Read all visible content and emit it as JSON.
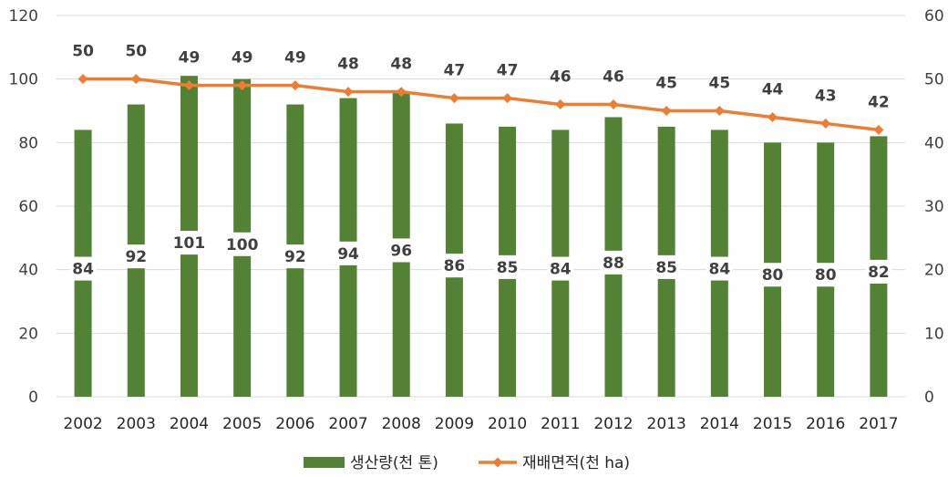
{
  "chart_data": {
    "type": "bar",
    "categories": [
      "2002",
      "2003",
      "2004",
      "2005",
      "2006",
      "2007",
      "2008",
      "2009",
      "2010",
      "2011",
      "2012",
      "2013",
      "2014",
      "2015",
      "2016",
      "2017"
    ],
    "series": [
      {
        "name": "생산량(천 톤)",
        "type": "bar",
        "axis": "left",
        "color": "#548235",
        "values": [
          84,
          92,
          101,
          100,
          92,
          94,
          96,
          86,
          85,
          84,
          88,
          85,
          84,
          80,
          80,
          82
        ]
      },
      {
        "name": "재배면적(천 ha)",
        "type": "line",
        "axis": "right",
        "color": "#ED7D31",
        "values": [
          50,
          50,
          49,
          49,
          49,
          48,
          48,
          47,
          47,
          46,
          46,
          45,
          45,
          44,
          43,
          42
        ]
      }
    ],
    "y_left": {
      "min": 0,
      "max": 120,
      "ticks": [
        "0",
        "20",
        "40",
        "60",
        "80",
        "100",
        "120"
      ]
    },
    "y_right": {
      "min": 0,
      "max": 60,
      "ticks": [
        "0",
        "10",
        "20",
        "30",
        "40",
        "50",
        "60"
      ]
    },
    "grid": true,
    "legend": "bottom-center"
  }
}
